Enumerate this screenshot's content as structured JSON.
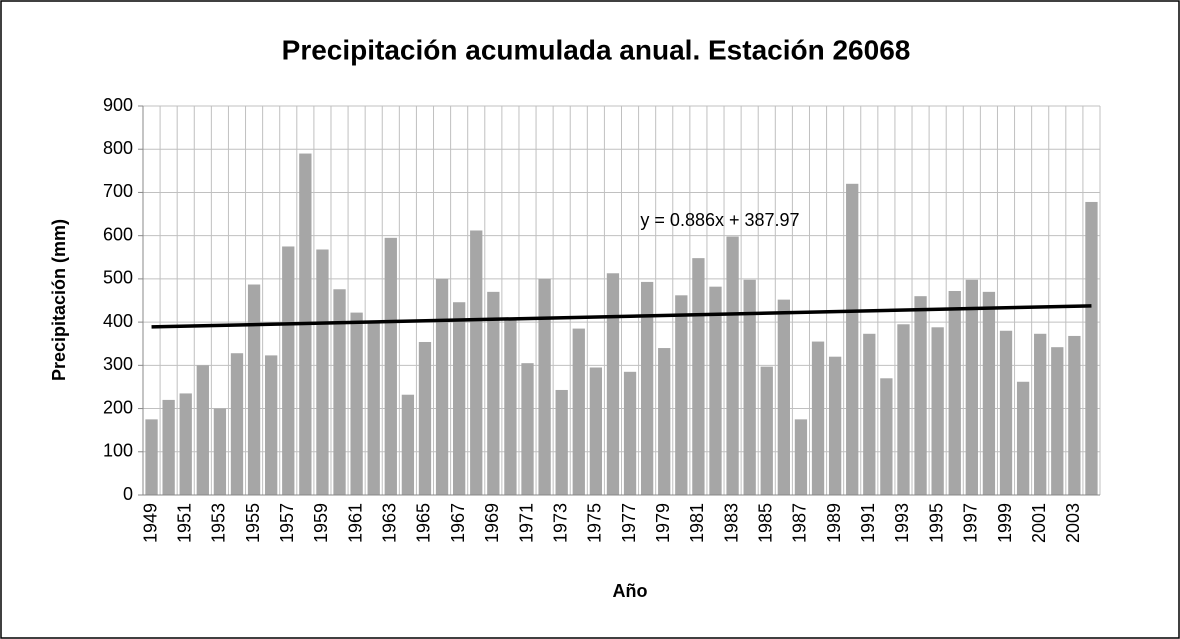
{
  "chart_data": {
    "type": "bar",
    "title": "Precipitación acumulada anual. Estación 26068",
    "x_label": "Año",
    "y_label": "Precipitación (mm)",
    "categories": [
      "1949",
      null,
      "1951",
      null,
      "1953",
      null,
      "1955",
      null,
      "1957",
      null,
      "1959",
      null,
      "1961",
      null,
      "1963",
      null,
      "1965",
      null,
      "1967",
      null,
      "1969",
      null,
      "1971",
      null,
      "1973",
      null,
      "1975",
      null,
      "1977",
      null,
      "1979",
      null,
      "1981",
      null,
      "1983",
      null,
      "1985",
      null,
      "1987",
      null,
      "1989",
      null,
      "1991",
      null,
      "1993",
      null,
      "1995",
      null,
      "1997",
      null,
      "1999",
      null,
      "2001",
      null,
      "2003",
      null
    ],
    "values": [
      175,
      220,
      235,
      300,
      200,
      328,
      487,
      323,
      575,
      790,
      568,
      476,
      422,
      400,
      595,
      232,
      354,
      500,
      446,
      612,
      470,
      405,
      305,
      500,
      243,
      385,
      295,
      513,
      285,
      493,
      340,
      462,
      548,
      482,
      598,
      498,
      297,
      452,
      175,
      355,
      320,
      720,
      373,
      270,
      395,
      460,
      388,
      472,
      498,
      470,
      380,
      262,
      373,
      342,
      368,
      678
    ],
    "color": "#a6a6a6",
    "ylim": [
      0,
      900
    ],
    "yticks": [
      0,
      100,
      200,
      300,
      400,
      500,
      600,
      700,
      800,
      900
    ],
    "grid": true,
    "trendline": {
      "label": "y = 0.886x + 387.97",
      "slope": 0.886,
      "intercept": 387.97,
      "color": "#000000"
    }
  }
}
